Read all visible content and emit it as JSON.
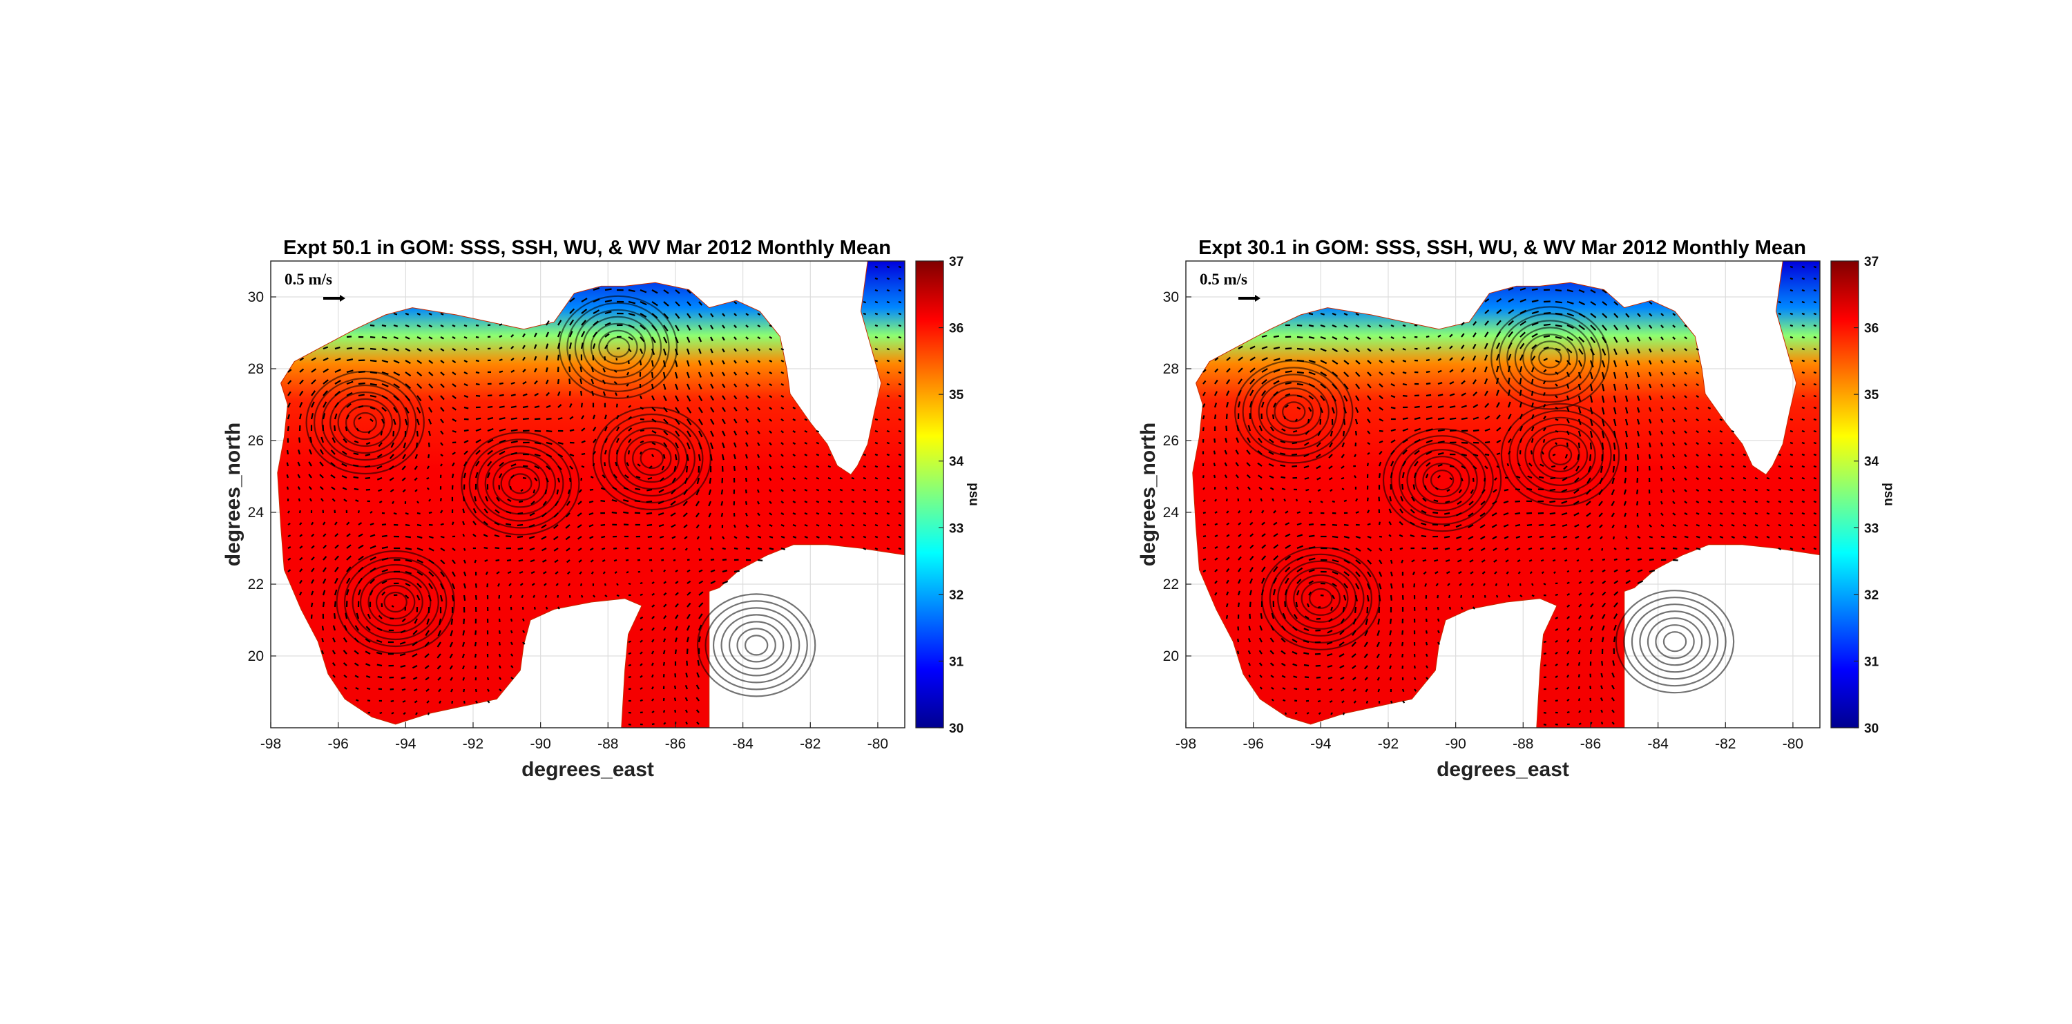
{
  "chart_data": [
    {
      "type": "heatmap",
      "title": "Expt 50.1 in GOM: SSS, SSH, WU, & WV Mar 2012 Monthly Mean",
      "xlabel": "degrees_east",
      "ylabel": "degrees_north",
      "xlim": [
        -98,
        -79.2
      ],
      "ylim": [
        18,
        31
      ],
      "xticks": [
        -98,
        -96,
        -94,
        -92,
        -90,
        -88,
        -86,
        -84,
        -82,
        -80
      ],
      "yticks": [
        20,
        22,
        24,
        26,
        28,
        30
      ],
      "grid": true,
      "colorbar": {
        "label": "psu",
        "min": 30,
        "max": 37,
        "ticks": [
          30,
          31,
          32,
          33,
          34,
          35,
          36,
          37
        ],
        "colormap": "jet"
      },
      "reference_vector": {
        "label": "0.5 m/s",
        "value": 0.5
      },
      "eddies": [
        [
          -90.6,
          24.8
        ],
        [
          -86.7,
          25.5
        ],
        [
          -95.2,
          26.5
        ],
        [
          -94.3,
          21.5
        ],
        [
          -83.6,
          20.3
        ],
        [
          -87.7,
          28.6
        ]
      ]
    },
    {
      "type": "heatmap",
      "title": "Expt 30.1 in GOM: SSS, SSH, WU, & WV Mar 2012 Monthly Mean",
      "xlabel": "degrees_east",
      "ylabel": "degrees_north",
      "xlim": [
        -98,
        -79.2
      ],
      "ylim": [
        18,
        31
      ],
      "xticks": [
        -98,
        -96,
        -94,
        -92,
        -90,
        -88,
        -86,
        -84,
        -82,
        -80
      ],
      "yticks": [
        20,
        22,
        24,
        26,
        28,
        30
      ],
      "grid": true,
      "colorbar": {
        "label": "psu",
        "min": 30,
        "max": 37,
        "ticks": [
          30,
          31,
          32,
          33,
          34,
          35,
          36,
          37
        ],
        "colormap": "jet"
      },
      "reference_vector": {
        "label": "0.5 m/s",
        "value": 0.5
      },
      "eddies": [
        [
          -90.4,
          24.9
        ],
        [
          -86.9,
          25.6
        ],
        [
          -94.8,
          26.8
        ],
        [
          -94.0,
          21.6
        ],
        [
          -83.5,
          20.4
        ],
        [
          -87.2,
          28.3
        ]
      ]
    }
  ],
  "colors": {
    "land": "#ffffff",
    "vectors": "#000000",
    "grid": "#dddddd"
  }
}
